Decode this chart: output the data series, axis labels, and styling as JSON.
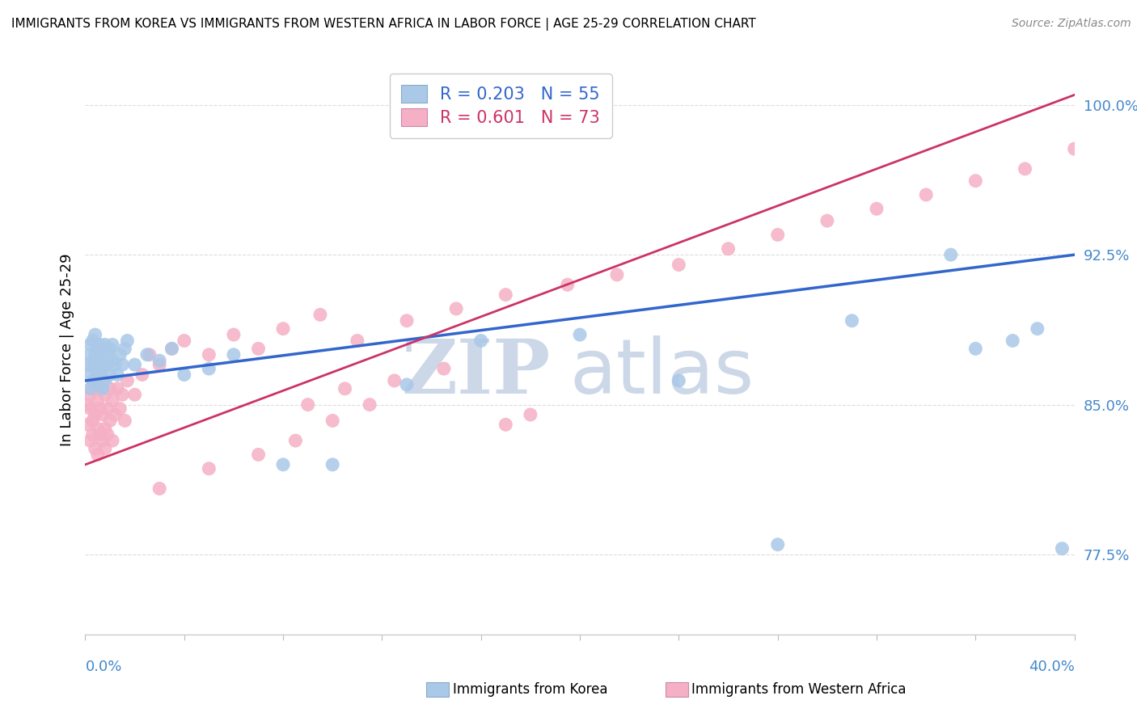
{
  "title": "IMMIGRANTS FROM KOREA VS IMMIGRANTS FROM WESTERN AFRICA IN LABOR FORCE | AGE 25-29 CORRELATION CHART",
  "source": "Source: ZipAtlas.com",
  "ylabel": "In Labor Force | Age 25-29",
  "xlim": [
    0.0,
    0.4
  ],
  "ylim": [
    0.735,
    1.02
  ],
  "ytick_values": [
    0.775,
    0.85,
    0.925,
    1.0
  ],
  "ytick_labels": [
    "77.5%",
    "85.0%",
    "92.5%",
    "100.0%"
  ],
  "xtick_label_left": "0.0%",
  "xtick_label_right": "40.0%",
  "korea_R": 0.203,
  "korea_N": 55,
  "africa_R": 0.601,
  "africa_N": 73,
  "korea_dot_color": "#aac8e8",
  "africa_dot_color": "#f5b0c5",
  "korea_line_color": "#3366cc",
  "africa_line_color": "#cc3366",
  "tick_color": "#4488cc",
  "watermark_color": "#ccd8e8",
  "grid_color": "#dddddd",
  "korea_x": [
    0.001,
    0.001,
    0.002,
    0.002,
    0.002,
    0.003,
    0.003,
    0.003,
    0.004,
    0.004,
    0.004,
    0.005,
    0.005,
    0.005,
    0.006,
    0.006,
    0.006,
    0.007,
    0.007,
    0.007,
    0.008,
    0.008,
    0.008,
    0.009,
    0.009,
    0.01,
    0.01,
    0.011,
    0.011,
    0.012,
    0.013,
    0.014,
    0.015,
    0.016,
    0.017,
    0.02,
    0.025,
    0.03,
    0.035,
    0.04,
    0.05,
    0.06,
    0.08,
    0.1,
    0.13,
    0.16,
    0.2,
    0.24,
    0.28,
    0.31,
    0.35,
    0.36,
    0.375,
    0.385,
    0.395
  ],
  "korea_y": [
    0.87,
    0.865,
    0.875,
    0.88,
    0.858,
    0.87,
    0.882,
    0.862,
    0.875,
    0.868,
    0.885,
    0.87,
    0.878,
    0.86,
    0.872,
    0.865,
    0.88,
    0.858,
    0.875,
    0.868,
    0.87,
    0.88,
    0.862,
    0.875,
    0.87,
    0.878,
    0.865,
    0.872,
    0.88,
    0.87,
    0.865,
    0.875,
    0.87,
    0.878,
    0.882,
    0.87,
    0.875,
    0.872,
    0.878,
    0.865,
    0.868,
    0.875,
    0.82,
    0.82,
    0.86,
    0.882,
    0.885,
    0.862,
    0.78,
    0.892,
    0.925,
    0.878,
    0.882,
    0.888,
    0.778
  ],
  "africa_x": [
    0.001,
    0.001,
    0.002,
    0.002,
    0.002,
    0.003,
    0.003,
    0.003,
    0.004,
    0.004,
    0.004,
    0.005,
    0.005,
    0.005,
    0.006,
    0.006,
    0.006,
    0.007,
    0.007,
    0.007,
    0.008,
    0.008,
    0.008,
    0.009,
    0.009,
    0.01,
    0.01,
    0.011,
    0.011,
    0.012,
    0.013,
    0.014,
    0.015,
    0.016,
    0.017,
    0.02,
    0.023,
    0.026,
    0.03,
    0.035,
    0.04,
    0.05,
    0.06,
    0.07,
    0.08,
    0.095,
    0.11,
    0.13,
    0.15,
    0.17,
    0.195,
    0.215,
    0.24,
    0.26,
    0.28,
    0.3,
    0.32,
    0.34,
    0.36,
    0.38,
    0.4,
    0.17,
    0.18,
    0.09,
    0.105,
    0.125,
    0.145,
    0.03,
    0.05,
    0.07,
    0.085,
    0.1,
    0.115
  ],
  "africa_y": [
    0.85,
    0.84,
    0.855,
    0.832,
    0.848,
    0.842,
    0.835,
    0.858,
    0.828,
    0.845,
    0.862,
    0.838,
    0.852,
    0.825,
    0.848,
    0.835,
    0.858,
    0.832,
    0.845,
    0.862,
    0.838,
    0.855,
    0.828,
    0.848,
    0.835,
    0.858,
    0.842,
    0.852,
    0.832,
    0.845,
    0.858,
    0.848,
    0.855,
    0.842,
    0.862,
    0.855,
    0.865,
    0.875,
    0.87,
    0.878,
    0.882,
    0.875,
    0.885,
    0.878,
    0.888,
    0.895,
    0.882,
    0.892,
    0.898,
    0.905,
    0.91,
    0.915,
    0.92,
    0.928,
    0.935,
    0.942,
    0.948,
    0.955,
    0.962,
    0.968,
    0.978,
    0.84,
    0.845,
    0.85,
    0.858,
    0.862,
    0.868,
    0.808,
    0.818,
    0.825,
    0.832,
    0.842,
    0.85
  ]
}
